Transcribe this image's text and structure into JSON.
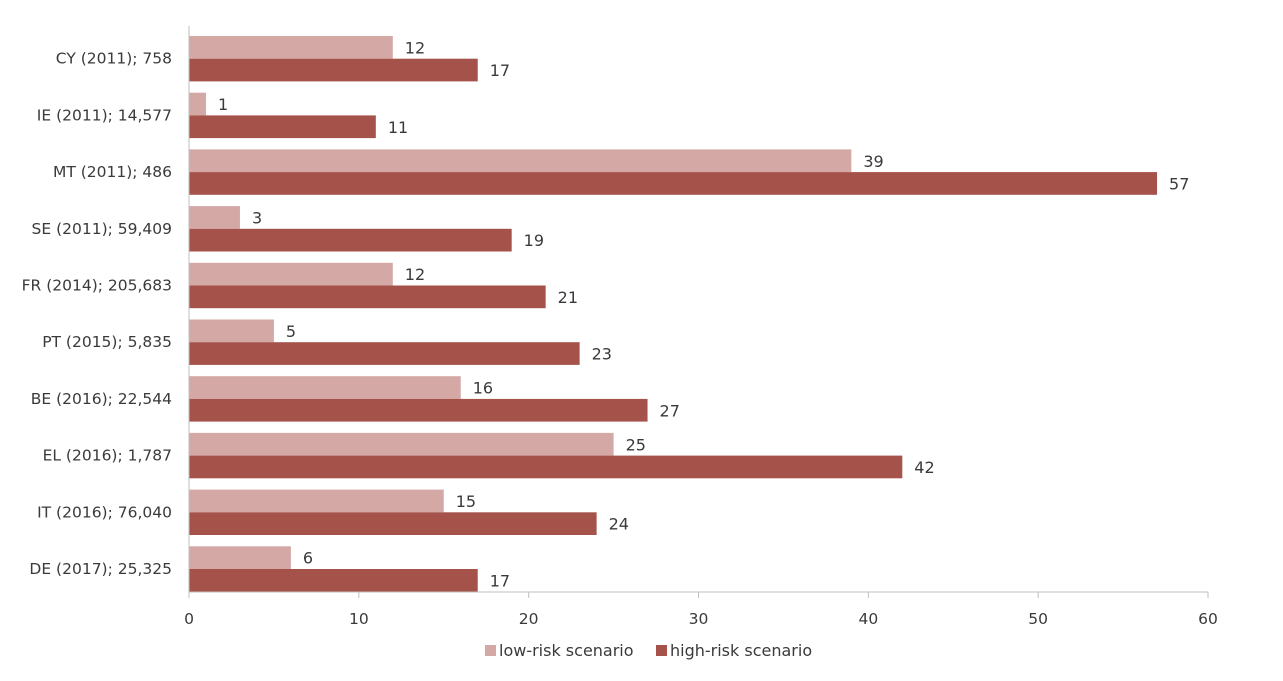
{
  "chart_data": {
    "type": "bar",
    "orientation": "horizontal",
    "categories": [
      "CY (2011); 758",
      "IE (2011); 14,577",
      "MT (2011); 486",
      "SE (2011); 59,409",
      "FR (2014); 205,683",
      "PT (2015); 5,835",
      "BE (2016); 22,544",
      "EL (2016); 1,787",
      "IT (2016); 76,040",
      "DE (2017); 25,325"
    ],
    "series": [
      {
        "name": "low-risk scenario",
        "color": "#d3a8a5",
        "values": [
          12,
          1,
          39,
          3,
          12,
          5,
          16,
          25,
          15,
          6
        ]
      },
      {
        "name": "high-risk scenario",
        "color": "#a5524a",
        "values": [
          17,
          11,
          57,
          19,
          21,
          23,
          27,
          42,
          24,
          17
        ]
      }
    ],
    "xlim": [
      0,
      60
    ],
    "xticks": [
      0,
      10,
      20,
      30,
      40,
      50,
      60
    ],
    "title": "",
    "xlabel": "",
    "ylabel": "",
    "grid": false,
    "legend_position": "bottom"
  }
}
